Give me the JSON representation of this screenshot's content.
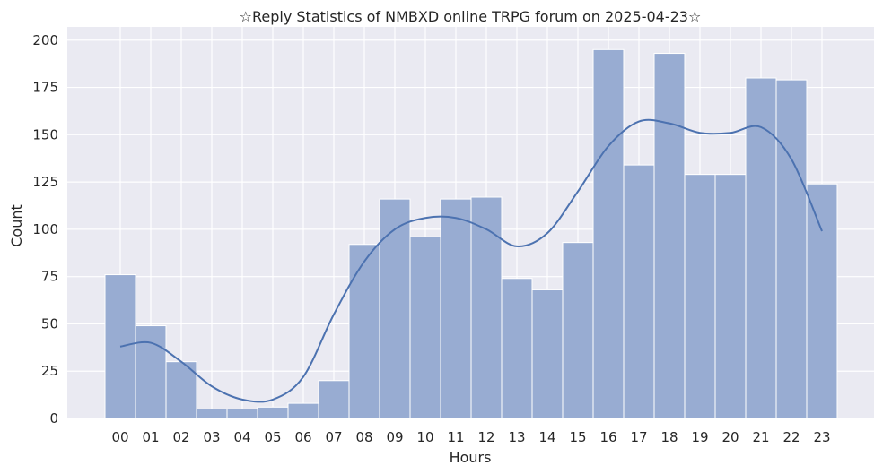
{
  "chart_data": {
    "type": "bar",
    "title": "☆Reply Statistics of NMBXD online TRPG forum on 2025-04-23☆",
    "xlabel": "Hours",
    "ylabel": "Count",
    "categories": [
      "00",
      "01",
      "02",
      "03",
      "04",
      "05",
      "06",
      "07",
      "08",
      "09",
      "10",
      "11",
      "12",
      "13",
      "14",
      "15",
      "16",
      "17",
      "18",
      "19",
      "20",
      "21",
      "22",
      "23"
    ],
    "values": [
      76,
      49,
      30,
      5,
      5,
      6,
      8,
      20,
      92,
      116,
      96,
      116,
      117,
      74,
      68,
      93,
      195,
      134,
      193,
      129,
      129,
      180,
      179,
      124
    ],
    "ylim": [
      0,
      207
    ],
    "yticks": [
      "0",
      "25",
      "50",
      "75",
      "100",
      "125",
      "150",
      "175",
      "200"
    ],
    "grid": true,
    "kde": {
      "type": "line",
      "x": [
        "00",
        "01",
        "02",
        "03",
        "04",
        "05",
        "06",
        "07",
        "08",
        "09",
        "10",
        "11",
        "12",
        "13",
        "14",
        "15",
        "16",
        "17",
        "18",
        "19",
        "20",
        "21",
        "22",
        "23"
      ],
      "y": [
        38,
        40,
        30,
        17,
        10,
        10,
        22,
        55,
        83,
        100,
        106,
        106,
        100,
        91,
        98,
        120,
        144,
        157,
        156,
        151,
        151,
        154,
        137,
        99
      ]
    },
    "colors": {
      "bar": "#98acd2",
      "bar_edge": "#ffffff",
      "kde": "#4c72b0",
      "plot_bg": "#eaeaf2",
      "grid": "#ffffff"
    }
  }
}
